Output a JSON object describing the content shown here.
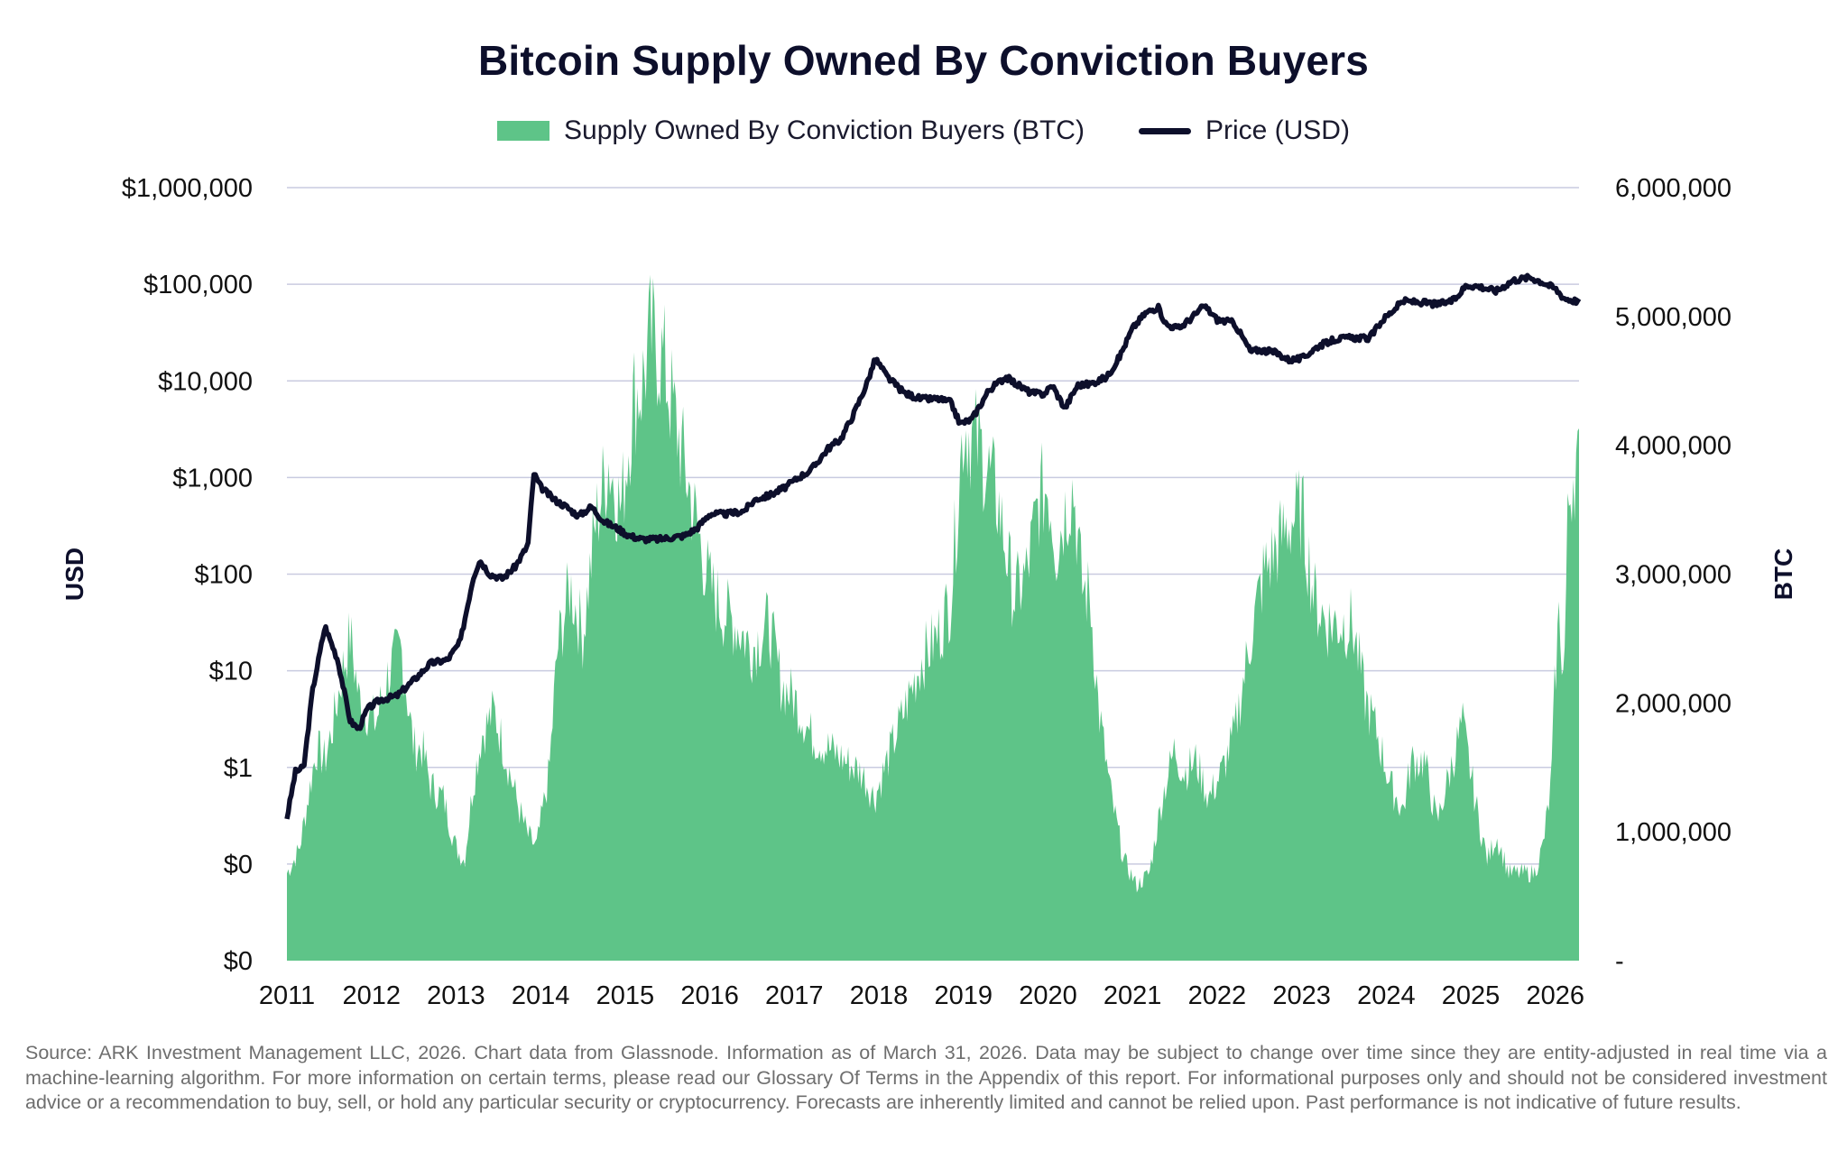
{
  "chart_data": {
    "type": "area+line",
    "title": "Bitcoin Supply Owned By Conviction Buyers",
    "legend": {
      "placement": "top-center",
      "entries": [
        {
          "name": "Supply Owned By Conviction Buyers (BTC)",
          "kind": "area",
          "color": "#5ec488"
        },
        {
          "name": "Price (USD)",
          "kind": "line",
          "color": "#0d0f2b"
        }
      ]
    },
    "xlabel": "",
    "x_ticks": [
      "2011",
      "2012",
      "2013",
      "2014",
      "2015",
      "2016",
      "2017",
      "2018",
      "2019",
      "2020",
      "2021",
      "2022",
      "2023",
      "2024",
      "2025",
      "2026"
    ],
    "xlim": [
      2011.0,
      2026.28
    ],
    "y_left": {
      "label": "USD",
      "scale": "log",
      "tick_labels": [
        "$1,000,000",
        "$100,000",
        "$10,000",
        "$1,000",
        "$100",
        "$10",
        "$1",
        "$0",
        "$0"
      ],
      "tick_values": [
        1000000,
        100000,
        10000,
        1000,
        100,
        10,
        1,
        0.1,
        0.01
      ],
      "range": [
        0.01,
        1000000
      ]
    },
    "y_right": {
      "label": "BTC",
      "scale": "linear",
      "tick_labels": [
        "6,000,000",
        "5,000,000",
        "4,000,000",
        "3,000,000",
        "2,000,000",
        "1,000,000",
        "-"
      ],
      "tick_values": [
        6000000,
        5000000,
        4000000,
        3000000,
        2000000,
        1000000,
        0
      ],
      "range": [
        0,
        6000000
      ]
    },
    "grid": true,
    "series": [
      {
        "name": "Supply Owned By Conviction Buyers (BTC)",
        "axis": "right",
        "type": "area",
        "x": [
          2011.0,
          2011.08,
          2011.15,
          2011.25,
          2011.35,
          2011.45,
          2011.55,
          2011.65,
          2011.75,
          2011.85,
          2011.95,
          2012.05,
          2012.2,
          2012.35,
          2012.5,
          2012.6,
          2012.7,
          2012.85,
          2013.0,
          2013.1,
          2013.2,
          2013.3,
          2013.45,
          2013.6,
          2013.75,
          2013.85,
          2013.95,
          2014.1,
          2014.2,
          2014.35,
          2014.5,
          2014.65,
          2014.8,
          2014.95,
          2015.1,
          2015.2,
          2015.3,
          2015.45,
          2015.6,
          2015.75,
          2015.9,
          2016.0,
          2016.15,
          2016.3,
          2016.5,
          2016.7,
          2016.85,
          2017.0,
          2017.2,
          2017.4,
          2017.6,
          2017.8,
          2017.95,
          2018.1,
          2018.3,
          2018.5,
          2018.7,
          2018.85,
          2019.0,
          2019.2,
          2019.4,
          2019.5,
          2019.6,
          2019.75,
          2019.9,
          2020.0,
          2020.1,
          2020.2,
          2020.3,
          2020.4,
          2020.5,
          2020.6,
          2020.75,
          2020.9,
          2021.05,
          2021.2,
          2021.35,
          2021.5,
          2021.6,
          2021.75,
          2021.9,
          2022.05,
          2022.2,
          2022.4,
          2022.55,
          2022.7,
          2022.85,
          2023.0,
          2023.15,
          2023.3,
          2023.45,
          2023.6,
          2023.75,
          2023.9,
          2024.05,
          2024.2,
          2024.3,
          2024.45,
          2024.6,
          2024.75,
          2024.9,
          2025.0,
          2025.1,
          2025.2,
          2025.3,
          2025.45,
          2025.6,
          2025.75,
          2025.85,
          2025.95,
          2026.0,
          2026.05,
          2026.1,
          2026.15,
          2026.2,
          2026.25,
          2026.28
        ],
        "values": [
          700000,
          800000,
          900000,
          1300000,
          1700000,
          1600000,
          1900000,
          2300000,
          2600000,
          2100000,
          2000000,
          1900000,
          2300000,
          2500000,
          1700000,
          1700000,
          1400000,
          1300000,
          900000,
          800000,
          1400000,
          1800000,
          2000000,
          1600000,
          1200000,
          1000000,
          900000,
          1500000,
          2500000,
          3000000,
          2600000,
          3500000,
          4000000,
          3600000,
          4500000,
          4600000,
          5000000,
          4800000,
          4300000,
          3800000,
          3300000,
          3000000,
          2800000,
          2700000,
          2500000,
          2700000,
          2200000,
          2100000,
          1800000,
          1700000,
          1600000,
          1500000,
          1300000,
          1600000,
          2000000,
          2400000,
          2600000,
          2900000,
          4300000,
          4100000,
          3700000,
          3300000,
          2900000,
          3100000,
          3700000,
          3800000,
          3300000,
          3600000,
          3800000,
          3000000,
          2900000,
          2000000,
          1300000,
          800000,
          600000,
          700000,
          1300000,
          1700000,
          1500000,
          1600000,
          1300000,
          1500000,
          1800000,
          2600000,
          3100000,
          3300000,
          3500000,
          3600000,
          2900000,
          2700000,
          2700000,
          2700000,
          2100000,
          1800000,
          1400000,
          1200000,
          1600000,
          1600000,
          1100000,
          1500000,
          1900000,
          1500000,
          1100000,
          800000,
          1000000,
          700000,
          700000,
          700000,
          900000,
          1400000,
          2300000,
          2800000,
          2200000,
          3600000,
          3900000,
          4000000,
          3900000
        ]
      },
      {
        "name": "Price (USD)",
        "axis": "left",
        "type": "line",
        "x": [
          2011.0,
          2011.1,
          2011.2,
          2011.3,
          2011.45,
          2011.6,
          2011.75,
          2011.85,
          2011.95,
          2012.1,
          2012.3,
          2012.5,
          2012.7,
          2012.9,
          2013.05,
          2013.2,
          2013.28,
          2013.4,
          2013.55,
          2013.7,
          2013.85,
          2013.92,
          2014.0,
          2014.15,
          2014.3,
          2014.45,
          2014.6,
          2014.75,
          2014.9,
          2015.05,
          2015.2,
          2015.4,
          2015.55,
          2015.7,
          2015.85,
          2016.0,
          2016.2,
          2016.4,
          2016.55,
          2016.7,
          2016.9,
          2017.05,
          2017.2,
          2017.4,
          2017.55,
          2017.7,
          2017.85,
          2017.96,
          2018.1,
          2018.3,
          2018.5,
          2018.7,
          2018.85,
          2018.96,
          2019.1,
          2019.3,
          2019.5,
          2019.65,
          2019.8,
          2019.95,
          2020.05,
          2020.2,
          2020.35,
          2020.5,
          2020.7,
          2020.85,
          2021.0,
          2021.15,
          2021.3,
          2021.4,
          2021.55,
          2021.7,
          2021.85,
          2022.0,
          2022.2,
          2022.4,
          2022.5,
          2022.7,
          2022.85,
          2023.0,
          2023.2,
          2023.4,
          2023.6,
          2023.8,
          2023.95,
          2024.2,
          2024.4,
          2024.6,
          2024.8,
          2024.95,
          2025.1,
          2025.3,
          2025.5,
          2025.7,
          2025.85,
          2026.0,
          2026.1,
          2026.2,
          2026.28
        ],
        "values": [
          0.3,
          0.9,
          1.0,
          6.0,
          29,
          13,
          3,
          2.5,
          4,
          5,
          5.5,
          8,
          12,
          13,
          20,
          90,
          140,
          100,
          90,
          120,
          200,
          1100,
          800,
          600,
          500,
          400,
          500,
          350,
          300,
          250,
          230,
          230,
          240,
          250,
          300,
          420,
          420,
          450,
          600,
          650,
          800,
          1000,
          1200,
          2000,
          2500,
          4500,
          9000,
          17000,
          11000,
          7500,
          6500,
          6500,
          6000,
          3600,
          4000,
          8000,
          11000,
          9000,
          7500,
          7300,
          9000,
          5200,
          9000,
          9300,
          11000,
          18000,
          35000,
          50000,
          58000,
          38000,
          35000,
          45000,
          60000,
          43000,
          40000,
          20000,
          21000,
          19500,
          16500,
          17000,
          23000,
          27000,
          28000,
          27500,
          42000,
          67000,
          65000,
          62000,
          68000,
          98000,
          95000,
          85000,
          110000,
          118000,
          105000,
          90000,
          72000,
          68000,
          67000
        ]
      }
    ]
  },
  "footnote": "Source: ARK Investment Management LLC, 2026. Chart data from Glassnode. Information as of March 31, 2026. Data may be subject to change over time since they are entity-adjusted in real time via a machine-learning algorithm. For more information on certain terms, please read our Glossary Of Terms in the Appendix of this report. For informational purposes only and should not be considered investment advice or a recommendation to buy, sell, or hold any particular security or cryptocurrency. Forecasts are inherently limited and cannot be relied upon. Past performance is not indicative of future results."
}
